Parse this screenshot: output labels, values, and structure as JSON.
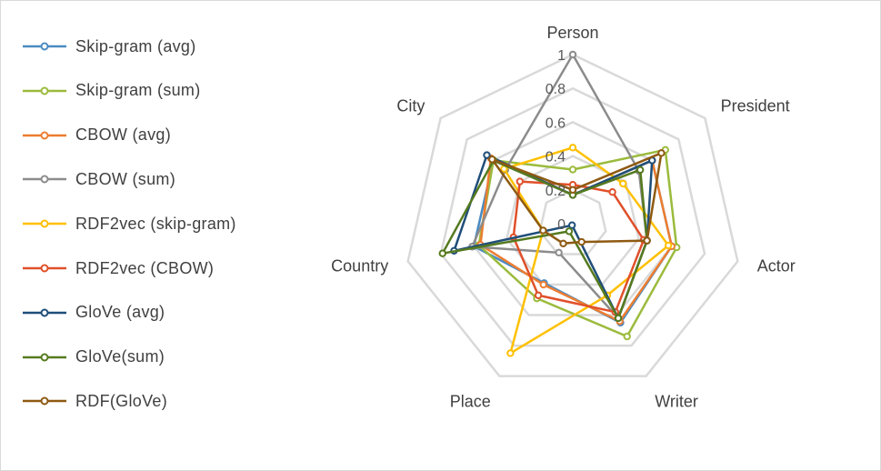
{
  "chart_data": {
    "type": "radar",
    "title": "",
    "axes": [
      "Person",
      "President",
      "Actor",
      "Writer",
      "Place",
      "Country",
      "City"
    ],
    "r_ticks": [
      "0",
      "0.2",
      "0.4",
      "0.6",
      "0.8",
      "1"
    ],
    "r_range": [
      0,
      1
    ],
    "grid": true,
    "legend_position": "left",
    "series": [
      {
        "name": "Skip-gram (avg)",
        "color": "#4a8bc2",
        "values": [
          0.17,
          0.6,
          0.6,
          0.65,
          0.39,
          0.6,
          0.6
        ]
      },
      {
        "name": "Skip-gram (sum)",
        "color": "#9bbb3c",
        "values": [
          0.32,
          0.7,
          0.63,
          0.74,
          0.49,
          0.57,
          0.6
        ]
      },
      {
        "name": "CBOW (avg)",
        "color": "#ed7d31",
        "values": [
          0.17,
          0.6,
          0.6,
          0.64,
          0.4,
          0.56,
          0.62
        ]
      },
      {
        "name": "CBOW (sum)",
        "color": "#8c8c8c",
        "values": [
          1.0,
          0.5,
          0.45,
          0.62,
          0.19,
          0.61,
          0.51
        ]
      },
      {
        "name": "RDF2vec (skip-gram)",
        "color": "#ffc000",
        "values": [
          0.45,
          0.38,
          0.58,
          0.47,
          0.85,
          0.18,
          0.52
        ]
      },
      {
        "name": "RDF2vec (CBOW)",
        "color": "#e0502a",
        "values": [
          0.23,
          0.3,
          0.43,
          0.58,
          0.47,
          0.36,
          0.4
        ]
      },
      {
        "name": "GloVe (avg)",
        "color": "#1f4e79",
        "values": [
          0.17,
          0.6,
          0.45,
          0.62,
          0.01,
          0.72,
          0.65
        ]
      },
      {
        "name": "GloVe(sum)",
        "color": "#557a1f",
        "values": [
          0.17,
          0.51,
          0.45,
          0.62,
          0.05,
          0.79,
          0.6
        ]
      },
      {
        "name": "RDF(GloVe)",
        "color": "#8e5a12",
        "values": [
          0.2,
          0.67,
          0.45,
          0.12,
          0.13,
          0.18,
          0.61
        ]
      }
    ]
  }
}
